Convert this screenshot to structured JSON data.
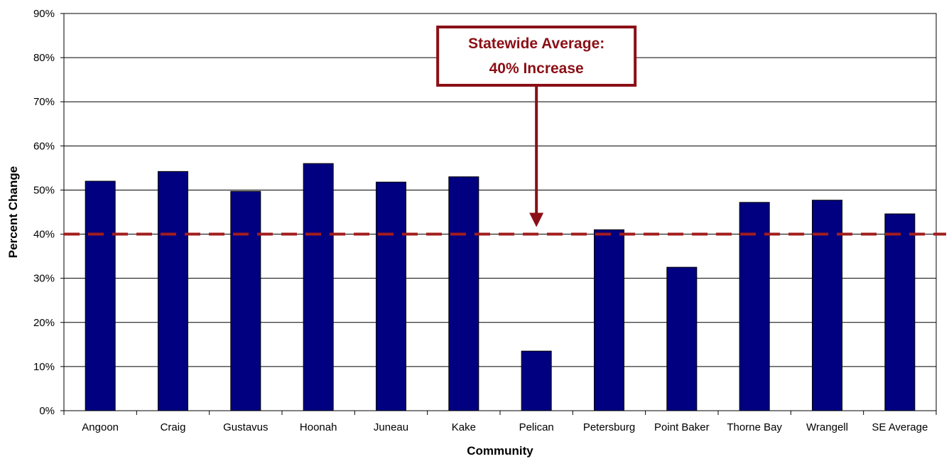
{
  "chart_data": {
    "type": "bar",
    "title": "",
    "xlabel": "Community",
    "ylabel": "Percent Change",
    "categories": [
      "Angoon",
      "Craig",
      "Gustavus",
      "Hoonah",
      "Juneau",
      "Kake",
      "Pelican",
      "Petersburg",
      "Point Baker",
      "Thorne Bay",
      "Wrangell",
      "SE Average"
    ],
    "values": [
      52,
      54.2,
      49.7,
      56,
      51.8,
      53,
      13.5,
      41,
      32.5,
      47.2,
      47.7,
      44.6
    ],
    "ylim": [
      0,
      90
    ],
    "yticks": [
      0,
      10,
      20,
      30,
      40,
      50,
      60,
      70,
      80,
      90
    ],
    "ytick_labels": [
      "0%",
      "10%",
      "20%",
      "30%",
      "40%",
      "50%",
      "60%",
      "70%",
      "80%",
      "90%"
    ],
    "grid": true,
    "reference_line": {
      "value": 40,
      "style": "dashed"
    },
    "annotation": {
      "line1": "Statewide Average:",
      "line2": "40% Increase",
      "points_to_category": "Pelican"
    },
    "colors": {
      "bar": "#000080",
      "reference": "#a31d1d",
      "annotation": "#8b0f16"
    }
  }
}
